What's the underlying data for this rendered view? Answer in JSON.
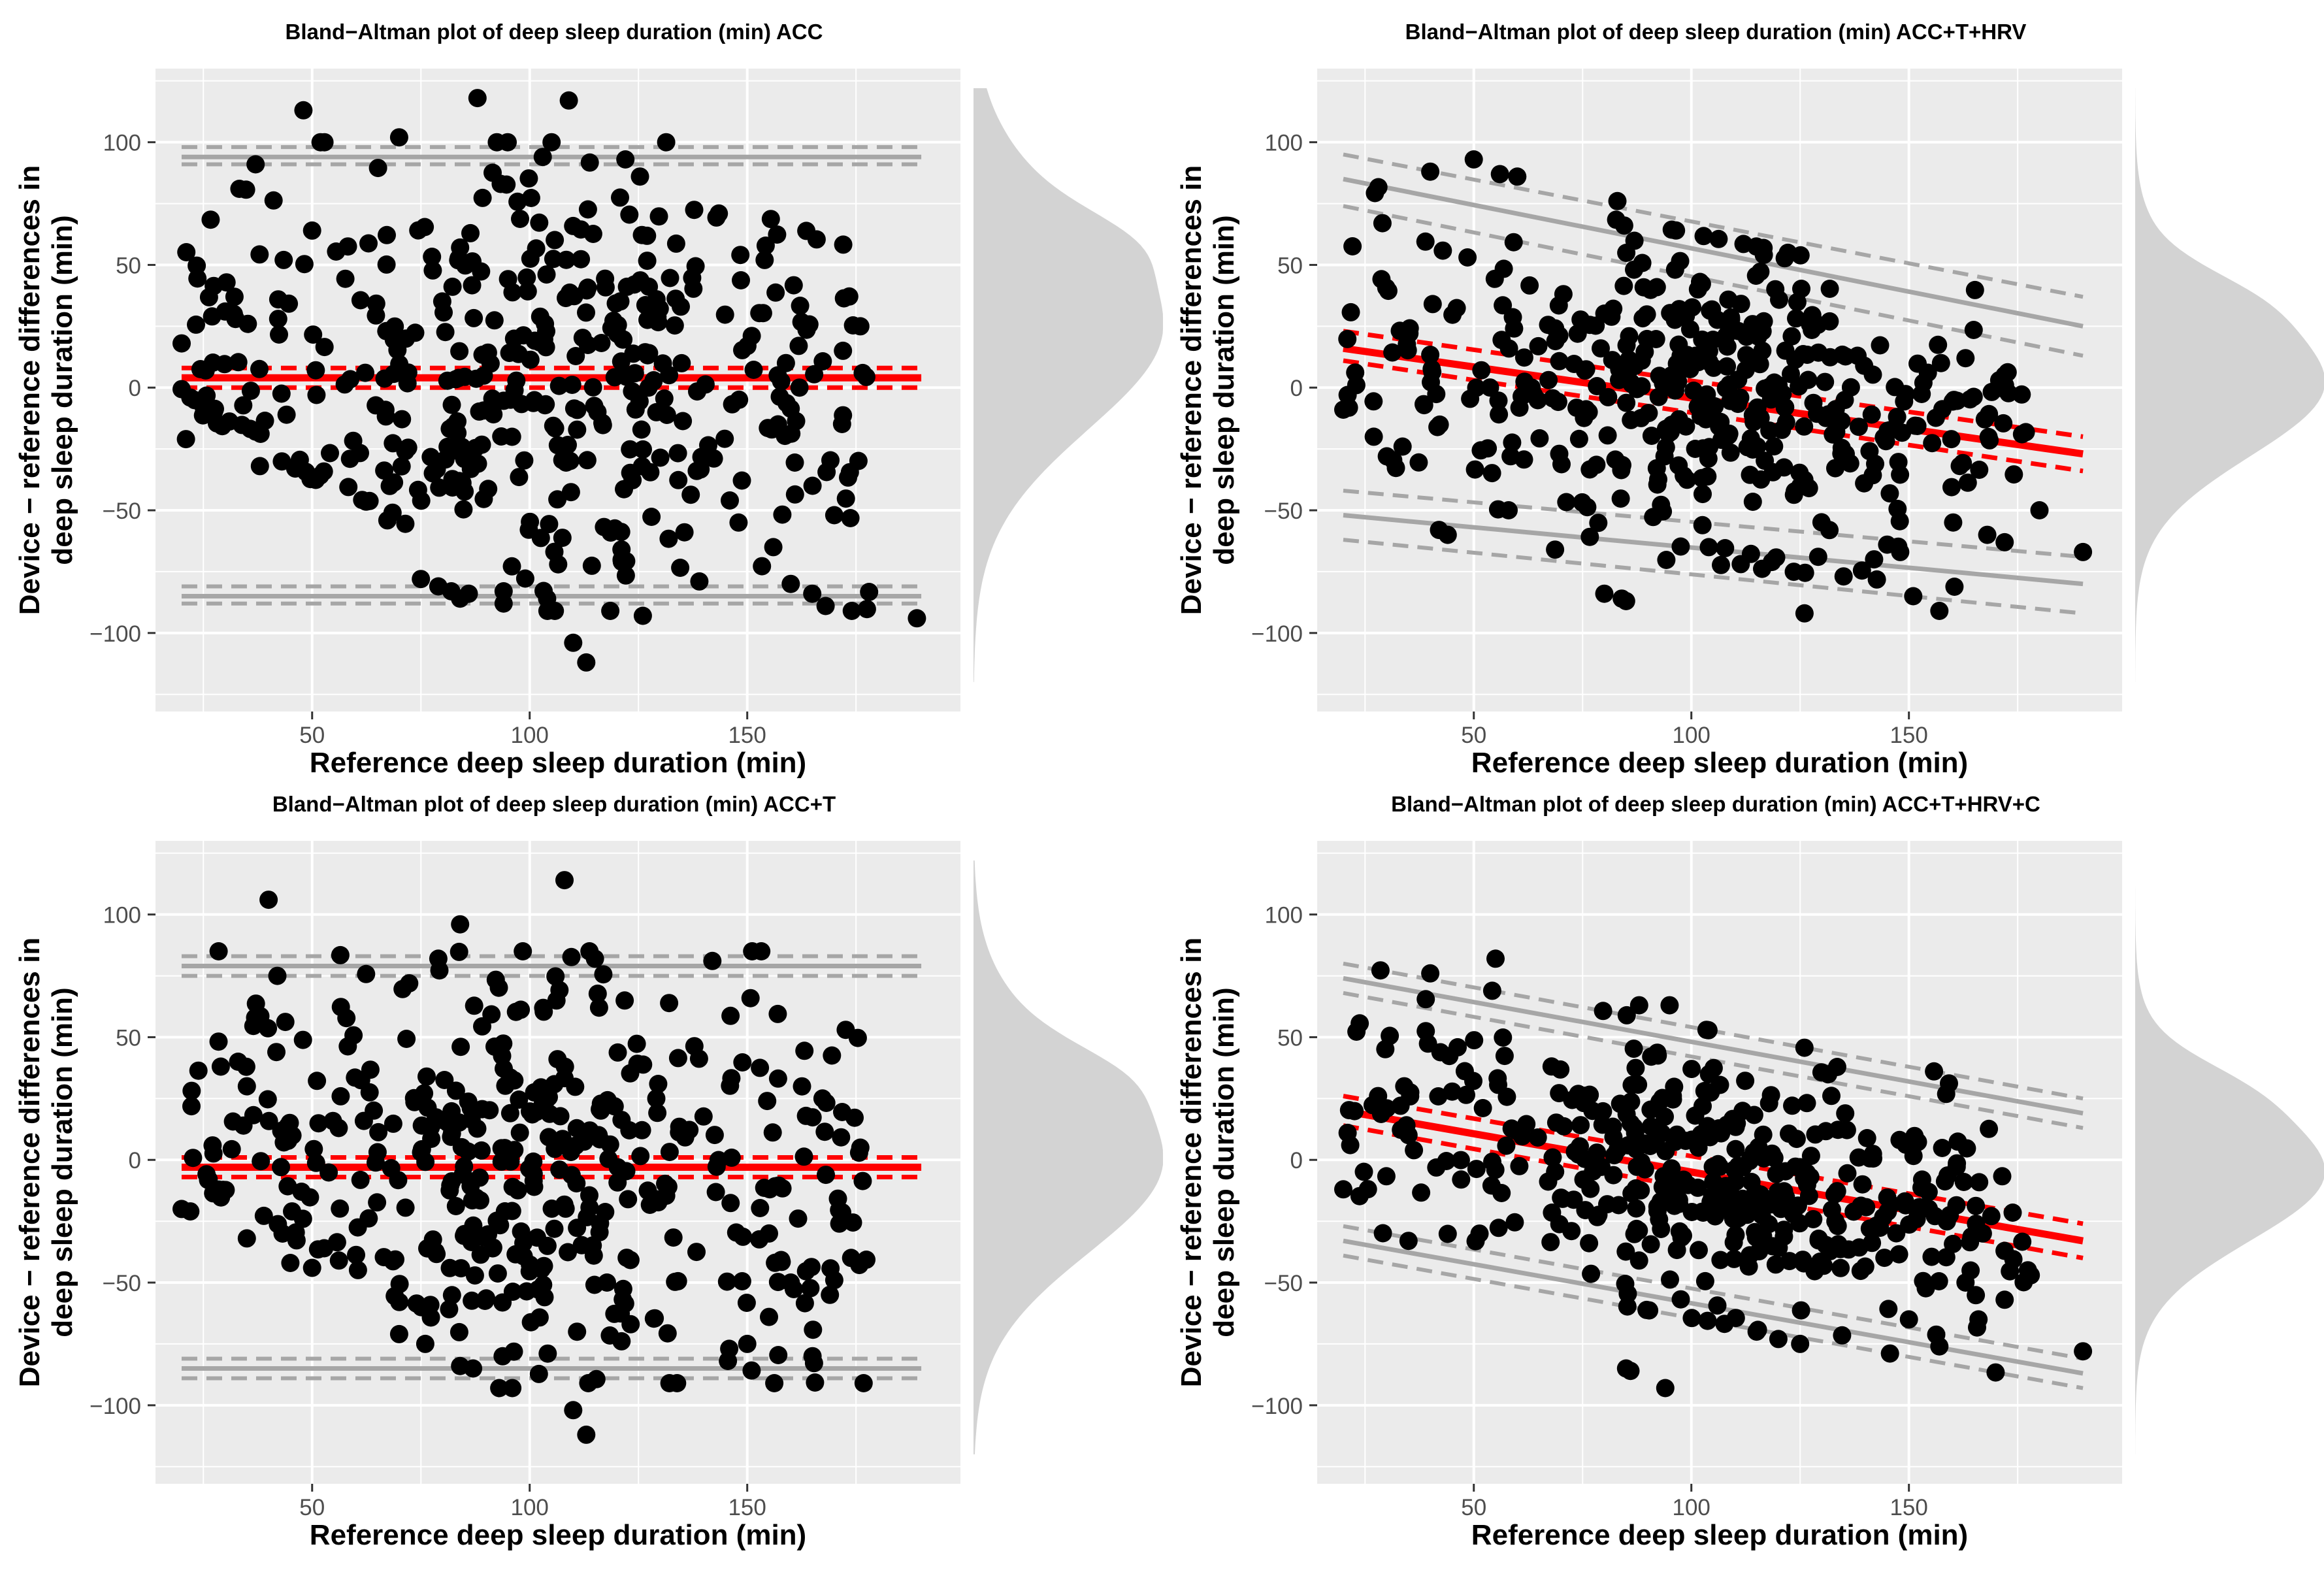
{
  "figure": {
    "background": "#ffffff",
    "panel_bg": "#ebebeb",
    "grid_color": "#ffffff",
    "point_color": "#000000",
    "bias_color": "#ff0000",
    "loa_color": "#a6a6a6",
    "density_color": "#d3d3d3"
  },
  "chart_data": [
    {
      "type": "scatter",
      "title": "Bland−Altman plot of deep sleep duration (min) ACC",
      "xlabel": "Reference deep sleep duration (min)",
      "ylabel_lines": [
        "Device − reference differences in",
        "deep sleep duration (min)"
      ],
      "xlim": [
        14,
        199
      ],
      "ylim": [
        -132,
        130
      ],
      "xticks": [
        50,
        100,
        150
      ],
      "yticks": [
        -100,
        -50,
        0,
        50,
        100
      ],
      "xtick_labels": [
        "50",
        "100",
        "150"
      ],
      "ytick_labels": [
        "−100",
        "−50",
        "0",
        "50",
        "100"
      ],
      "bias": {
        "y0": 4,
        "y1": 4,
        "ci_low": [
          0,
          0
        ],
        "ci_high": [
          8,
          8
        ]
      },
      "loa_upper": {
        "y0": 94,
        "y1": 94,
        "ci_low": [
          91,
          91
        ],
        "ci_high": [
          98,
          98
        ]
      },
      "loa_lower": {
        "y0": -85,
        "y1": -85,
        "ci_low": [
          -88,
          -88
        ],
        "ci_high": [
          -81,
          -81
        ]
      },
      "line_x": [
        20,
        190
      ],
      "density_center": 25,
      "density_sd": 42,
      "seed": 11,
      "n_points": 420,
      "points": [
        [
          48,
          113
        ],
        [
          88,
          118
        ],
        [
          109,
          117
        ],
        [
          37,
          91
        ],
        [
          70,
          102
        ],
        [
          103,
          94
        ],
        [
          122,
          93
        ],
        [
          189,
          -94
        ],
        [
          110,
          -104
        ],
        [
          113,
          -112
        ],
        [
          126,
          -93
        ],
        [
          20,
          18
        ],
        [
          21,
          -21
        ],
        [
          27,
          29
        ],
        [
          30,
          31
        ],
        [
          32,
          30
        ],
        [
          38,
          -32
        ],
        [
          176,
          25
        ],
        [
          172,
          15
        ],
        [
          168,
          -89
        ],
        [
          165,
          -40
        ],
        [
          170,
          -52
        ],
        [
          160,
          -80
        ],
        [
          156,
          -65
        ],
        [
          154,
          52
        ],
        [
          157,
          5
        ],
        [
          162,
          0
        ],
        [
          146,
          -46
        ],
        [
          148,
          -55
        ],
        [
          139,
          -79
        ],
        [
          86,
          -84
        ],
        [
          84,
          -86
        ],
        [
          94,
          -83
        ],
        [
          104,
          -86
        ],
        [
          94,
          -88
        ],
        [
          50,
          64
        ],
        [
          51,
          -3
        ],
        [
          75,
          -78
        ],
        [
          79,
          -81
        ],
        [
          82,
          -83
        ]
      ]
    },
    {
      "type": "scatter",
      "title": "Bland−Altman plot of deep sleep duration (min) ACC+T+HRV",
      "xlabel": "Reference deep sleep duration (min)",
      "ylabel_lines": [
        "Device − reference differences in",
        "deep sleep duration (min)"
      ],
      "xlim": [
        14,
        199
      ],
      "ylim": [
        -132,
        130
      ],
      "xticks": [
        50,
        100,
        150
      ],
      "yticks": [
        -100,
        -50,
        0,
        50,
        100
      ],
      "xtick_labels": [
        "50",
        "100",
        "150"
      ],
      "ytick_labels": [
        "−100",
        "−50",
        "0",
        "50",
        "100"
      ],
      "bias": {
        "y0": 16,
        "y1": -27,
        "ci_low": [
          11,
          -34
        ],
        "ci_high": [
          23,
          -20
        ]
      },
      "loa_upper": {
        "y0": 85,
        "y1": 25,
        "ci_low": [
          74,
          13
        ],
        "ci_high": [
          95,
          37
        ]
      },
      "loa_lower": {
        "y0": -52,
        "y1": -80,
        "ci_low": [
          -62,
          -92
        ],
        "ci_high": [
          -42,
          -69
        ]
      },
      "line_x": [
        20,
        190
      ],
      "density_center": 2,
      "density_sd": 30,
      "seed": 23,
      "n_points": 420,
      "points": [
        [
          40,
          88
        ],
        [
          50,
          93
        ],
        [
          56,
          87
        ],
        [
          60,
          86
        ],
        [
          83,
          76
        ],
        [
          29,
          67
        ],
        [
          190,
          -67
        ],
        [
          126,
          -92
        ],
        [
          157,
          -91
        ],
        [
          151,
          -85
        ],
        [
          142,
          -70
        ],
        [
          180,
          -50
        ],
        [
          172,
          -63
        ],
        [
          168,
          -60
        ],
        [
          176,
          -19
        ],
        [
          172,
          5
        ],
        [
          163,
          12
        ],
        [
          84,
          -86
        ],
        [
          85,
          -87
        ],
        [
          80,
          -84
        ],
        [
          20,
          -9
        ],
        [
          21,
          -3
        ],
        [
          27,
          -20
        ],
        [
          30,
          -28
        ],
        [
          42,
          -58
        ],
        [
          44,
          -60
        ],
        [
          58,
          -50
        ],
        [
          104,
          -65
        ],
        [
          148,
          -67
        ],
        [
          145,
          -64
        ]
      ]
    },
    {
      "type": "scatter",
      "title": "Bland−Altman plot of deep sleep duration (min) ACC+T",
      "xlabel": "Reference deep sleep duration (min)",
      "ylabel_lines": [
        "Device − reference differences in",
        "deep sleep duration (min)"
      ],
      "xlim": [
        14,
        199
      ],
      "ylim": [
        -132,
        130
      ],
      "xticks": [
        50,
        100,
        150
      ],
      "yticks": [
        -100,
        -50,
        0,
        50,
        100
      ],
      "xtick_labels": [
        "50",
        "100",
        "150"
      ],
      "ytick_labels": [
        "−100",
        "−50",
        "0",
        "50",
        "100"
      ],
      "bias": {
        "y0": -3,
        "y1": -3,
        "ci_low": [
          -7,
          -7
        ],
        "ci_high": [
          1,
          1
        ]
      },
      "loa_upper": {
        "y0": 79,
        "y1": 79,
        "ci_low": [
          75,
          75
        ],
        "ci_high": [
          83,
          83
        ]
      },
      "loa_lower": {
        "y0": -85,
        "y1": -85,
        "ci_low": [
          -89,
          -89
        ],
        "ci_high": [
          -81,
          -81
        ]
      },
      "line_x": [
        20,
        190
      ],
      "density_center": 0,
      "density_sd": 38,
      "seed": 37,
      "n_points": 420,
      "points": [
        [
          40,
          106
        ],
        [
          108,
          114
        ],
        [
          84,
          96
        ],
        [
          42,
          75
        ],
        [
          79,
          82
        ],
        [
          115,
          82
        ],
        [
          113,
          -112
        ],
        [
          110,
          -102
        ],
        [
          96,
          -93
        ],
        [
          93,
          -93
        ],
        [
          20,
          -20
        ],
        [
          22,
          -21
        ],
        [
          176,
          5
        ],
        [
          170,
          -49
        ],
        [
          169,
          -55
        ],
        [
          165,
          -80
        ],
        [
          160,
          -50
        ],
        [
          155,
          -30
        ],
        [
          150,
          -75
        ],
        [
          155,
          -64
        ],
        [
          87,
          -85
        ],
        [
          84,
          -84
        ],
        [
          76,
          -75
        ],
        [
          70,
          -71
        ],
        [
          50,
          -44
        ],
        [
          45,
          -42
        ],
        [
          35,
          -32
        ],
        [
          29,
          38
        ],
        [
          33,
          40
        ],
        [
          35,
          30
        ]
      ]
    },
    {
      "type": "scatter",
      "title": "Bland−Altman plot of deep sleep duration (min) ACC+T+HRV+C",
      "xlabel": "Reference deep sleep duration (min)",
      "ylabel_lines": [
        "Device − reference differences in",
        "deep sleep duration (min)"
      ],
      "xlim": [
        14,
        199
      ],
      "ylim": [
        -132,
        130
      ],
      "xticks": [
        50,
        100,
        150
      ],
      "yticks": [
        -100,
        -50,
        0,
        50,
        100
      ],
      "xtick_labels": [
        "50",
        "100",
        "150"
      ],
      "ytick_labels": [
        "−100",
        "−50",
        "0",
        "50",
        "100"
      ],
      "bias": {
        "y0": 20,
        "y1": -33,
        "ci_low": [
          14,
          -40
        ],
        "ci_high": [
          26,
          -26
        ]
      },
      "loa_upper": {
        "y0": 74,
        "y1": 19,
        "ci_low": [
          68,
          13
        ],
        "ci_high": [
          80,
          25
        ]
      },
      "loa_lower": {
        "y0": -33,
        "y1": -87,
        "ci_low": [
          -39,
          -93
        ],
        "ci_high": [
          -27,
          -81
        ]
      },
      "line_x": [
        20,
        190
      ],
      "density_center": -5,
      "density_sd": 28,
      "seed": 53,
      "n_points": 420,
      "points": [
        [
          55,
          82
        ],
        [
          40,
          76
        ],
        [
          88,
          63
        ],
        [
          95,
          63
        ],
        [
          190,
          -78
        ],
        [
          94,
          -93
        ],
        [
          86,
          -86
        ],
        [
          85,
          -85
        ],
        [
          178,
          -47
        ],
        [
          172,
          -57
        ],
        [
          166,
          -65
        ],
        [
          157,
          -76
        ],
        [
          150,
          -65
        ],
        [
          20,
          -12
        ],
        [
          21,
          11
        ],
        [
          28,
          26
        ],
        [
          30,
          21
        ],
        [
          35,
          -33
        ],
        [
          141,
          -28
        ],
        [
          167,
          -30
        ],
        [
          163,
          -50
        ],
        [
          125,
          -75
        ],
        [
          120,
          -73
        ],
        [
          115,
          -70
        ]
      ]
    }
  ]
}
